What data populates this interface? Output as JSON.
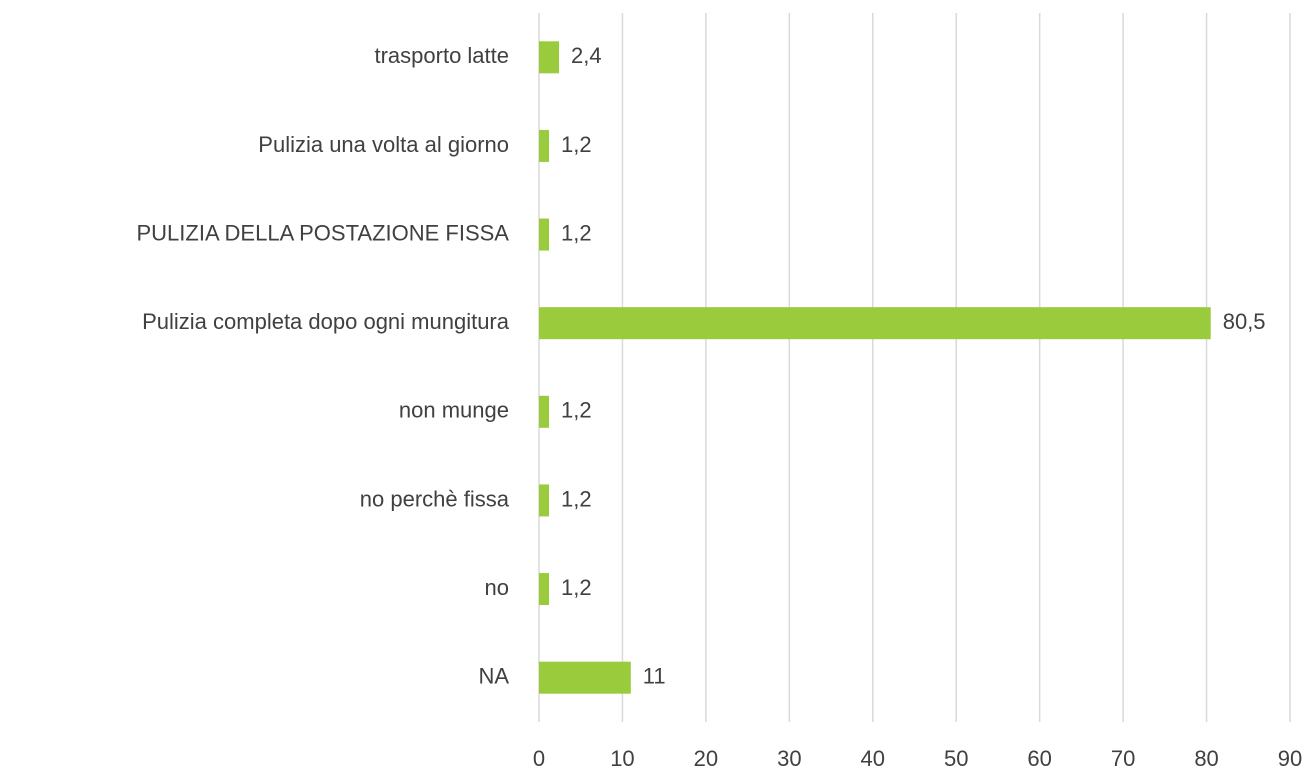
{
  "chart_data": {
    "type": "bar",
    "orientation": "horizontal",
    "categories": [
      "trasporto latte",
      "Pulizia una volta al giorno",
      "PULIZIA DELLA POSTAZIONE FISSA",
      "Pulizia completa dopo ogni mungitura",
      "non munge",
      "no perchè fissa",
      "no",
      "NA"
    ],
    "values": [
      2.4,
      1.2,
      1.2,
      80.5,
      1.2,
      1.2,
      1.2,
      11
    ],
    "value_labels": [
      "2,4",
      "1,2",
      "1,2",
      "80,5",
      "1,2",
      "1,2",
      "1,2",
      "11"
    ],
    "color": "#9acb3c",
    "xlim": [
      0,
      90
    ],
    "xticks": [
      0,
      10,
      20,
      30,
      40,
      50,
      60,
      70,
      80,
      90
    ],
    "grid": true
  }
}
